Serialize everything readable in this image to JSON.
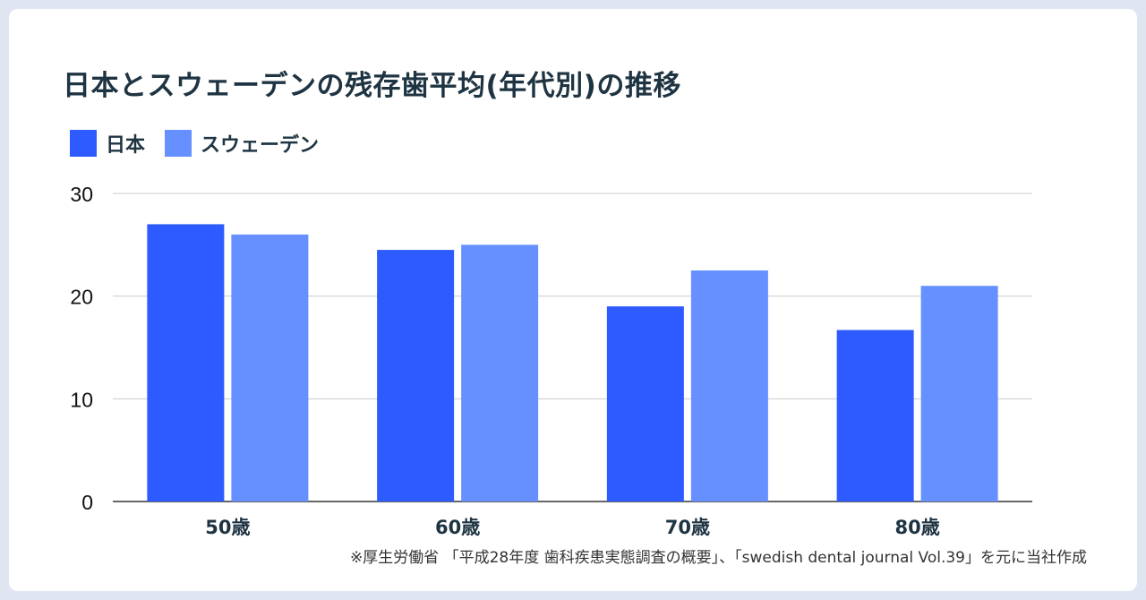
{
  "chart_data": {
    "type": "bar",
    "title": "日本とスウェーデンの残存歯平均(年代別)の推移",
    "categories": [
      "50歳",
      "60歳",
      "70歳",
      "80歳"
    ],
    "series": [
      {
        "name": "日本",
        "values": [
          27.0,
          24.5,
          19.0,
          16.7
        ],
        "color": "#2d5bff"
      },
      {
        "name": "スウェーデン",
        "values": [
          26.0,
          25.0,
          22.5,
          21.0
        ],
        "color": "#6690ff"
      }
    ],
    "yticks": [
      "0",
      "10",
      "20",
      "30"
    ],
    "ylim": [
      0,
      30
    ],
    "xlabel": "",
    "ylabel": "",
    "grid": true,
    "legend": "top-left"
  },
  "source_note": "※厚生労働省 「平成28年度 歯科疾患実態調査の概要」、「swedish dental journal Vol.39」を元に当社作成"
}
